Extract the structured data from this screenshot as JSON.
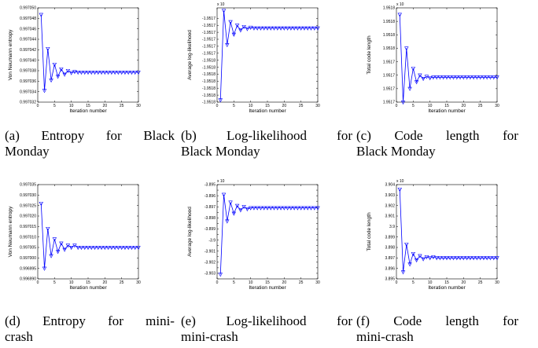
{
  "charts": [
    {
      "id": "a",
      "chart_data": {
        "type": "line",
        "xlabel": "Iteration number",
        "ylabel": "Von Neumann entropy",
        "xlim": [
          0,
          30
        ],
        "ylim": [
          0.997032,
          0.99705
        ],
        "xticks": [
          0,
          5,
          10,
          15,
          20,
          25,
          30
        ],
        "yticks": [
          0.997032,
          0.997034,
          0.997036,
          0.997038,
          0.99704,
          0.997042,
          0.997044,
          0.997046,
          0.997048,
          0.99705
        ],
        "ytick_labels": [
          "0.997032",
          "0.997034",
          "0.997036",
          "0.997038",
          "0.997040",
          "0.997042",
          "0.997044",
          "0.997046",
          "0.997048",
          "0.997050"
        ],
        "exponent_label": "",
        "x": [
          1,
          2,
          3,
          4,
          5,
          6,
          7,
          8,
          9,
          10,
          11,
          12,
          13,
          14,
          15,
          16,
          17,
          18,
          19,
          20,
          21,
          22,
          23,
          24,
          25,
          26,
          27,
          28,
          29,
          30
        ],
        "y": [
          0.9970487,
          0.9970342,
          0.9970422,
          0.9970362,
          0.9970392,
          0.9970369,
          0.9970383,
          0.9970373,
          0.997038,
          0.9970376,
          0.9970378,
          0.9970377,
          0.9970377,
          0.9970377,
          0.9970377,
          0.9970377,
          0.9970377,
          0.9970377,
          0.9970377,
          0.9970377,
          0.9970377,
          0.9970377,
          0.9970377,
          0.9970377,
          0.9970377,
          0.9970377,
          0.9970377,
          0.9970377,
          0.9970377,
          0.9970377
        ],
        "color": "#0000ff",
        "marker": "triangle-down"
      },
      "caption": {
        "line1": [
          "(a)",
          "Entropy",
          "for",
          "Black"
        ],
        "line2": "Monday"
      }
    },
    {
      "id": "b",
      "chart_data": {
        "type": "line",
        "xlabel": "Iteration number",
        "ylabel": "Average log-likelihood",
        "xlim": [
          0,
          30
        ],
        "ylim": [
          -19.5182,
          -19.51685
        ],
        "xticks": [
          0,
          5,
          10,
          15,
          20,
          25,
          30
        ],
        "yticks": [
          -19.5182,
          -19.5181,
          -19.518,
          -19.5179,
          -19.5178,
          -19.5177,
          -19.5176,
          -19.5175,
          -19.5174,
          -19.5173,
          -19.5172,
          -19.5171,
          -19.517
        ],
        "ytick_labels": [
          "-1.9518",
          "-1.9518",
          "-1.9518",
          "-1.9518",
          "-1.9518",
          "-1.9518",
          "-1.9518",
          "-1.9517",
          "-1.9517",
          "-1.9517",
          "-1.9517",
          "-1.9517",
          "-1.9517"
        ],
        "exponent_label": "x 10",
        "x": [
          1,
          2,
          3,
          4,
          5,
          6,
          7,
          8,
          9,
          10,
          11,
          12,
          13,
          14,
          15,
          16,
          17,
          18,
          19,
          20,
          21,
          22,
          23,
          24,
          25,
          26,
          27,
          28,
          29,
          30
        ],
        "y": [
          -19.51817,
          -19.51689,
          -19.51738,
          -19.51705,
          -19.51723,
          -19.5171,
          -19.51717,
          -19.51712,
          -19.51715,
          -19.51713,
          -19.51714,
          -19.51714,
          -19.51714,
          -19.51714,
          -19.51714,
          -19.51714,
          -19.51714,
          -19.51714,
          -19.51714,
          -19.51714,
          -19.51714,
          -19.51714,
          -19.51714,
          -19.51714,
          -19.51714,
          -19.51714,
          -19.51714,
          -19.51714,
          -19.51714,
          -19.51714
        ],
        "color": "#0000ff",
        "marker": "triangle-down"
      },
      "caption": {
        "line1": [
          "(b)",
          "Log-likelihood",
          "for"
        ],
        "line2": "Black Monday"
      }
    },
    {
      "id": "c",
      "chart_data": {
        "type": "line",
        "xlabel": "Iteration number",
        "ylabel": "Total code length",
        "xlim": [
          0,
          30
        ],
        "ylim": [
          1.95168,
          1.95182
        ],
        "xticks": [
          0,
          5,
          10,
          15,
          20,
          25,
          30
        ],
        "yticks": [
          1.95168,
          1.9517,
          1.95172,
          1.95174,
          1.95176,
          1.95178,
          1.9518,
          1.95182
        ],
        "ytick_labels": [
          "1.9517",
          "1.9517",
          "1.9517",
          "1.9517",
          "1.9518",
          "1.9518",
          "1.9518",
          "1.9518"
        ],
        "exponent_label": "x 10",
        "x": [
          1,
          2,
          3,
          4,
          5,
          6,
          7,
          8,
          9,
          10,
          11,
          12,
          13,
          14,
          15,
          16,
          17,
          18,
          19,
          20,
          21,
          22,
          23,
          24,
          25,
          26,
          27,
          28,
          29,
          30
        ],
        "y": [
          1.95181,
          1.95168,
          1.95176,
          1.9517,
          1.95173,
          1.95171,
          1.95172,
          1.951715,
          1.951718,
          1.951716,
          1.951717,
          1.951717,
          1.951717,
          1.951717,
          1.951717,
          1.951717,
          1.951717,
          1.951717,
          1.951717,
          1.951717,
          1.951717,
          1.951717,
          1.951717,
          1.951717,
          1.951717,
          1.951717,
          1.951717,
          1.951717,
          1.951717,
          1.951717
        ],
        "color": "#0000ff",
        "marker": "triangle-down"
      },
      "caption": {
        "line1": [
          "(c)",
          "Code",
          "length",
          "for"
        ],
        "line2": "Black Monday"
      }
    },
    {
      "id": "d",
      "chart_data": {
        "type": "line",
        "xlabel": "Iteration number",
        "ylabel": "Von Neumann entropy",
        "xlim": [
          0,
          30
        ],
        "ylim": [
          0.99699,
          0.997035
        ],
        "xticks": [
          0,
          5,
          10,
          15,
          20,
          25,
          30
        ],
        "yticks": [
          0.99699,
          0.996995,
          0.997,
          0.997005,
          0.99701,
          0.997015,
          0.99702,
          0.997025,
          0.99703,
          0.997035
        ],
        "ytick_labels": [
          "0.996990",
          "0.996995",
          "0.997000",
          "0.997005",
          "0.997010",
          "0.997015",
          "0.997020",
          "0.997025",
          "0.997030",
          "0.997035"
        ],
        "exponent_label": "",
        "x": [
          1,
          2,
          3,
          4,
          5,
          6,
          7,
          8,
          9,
          10,
          11,
          12,
          13,
          14,
          15,
          16,
          17,
          18,
          19,
          20,
          21,
          22,
          23,
          24,
          25,
          26,
          27,
          28,
          29,
          30
        ],
        "y": [
          0.997026,
          0.996995,
          0.997014,
          0.997001,
          0.997009,
          0.997003,
          0.997007,
          0.997004,
          0.997006,
          0.997005,
          0.997006,
          0.997005,
          0.997005,
          0.997005,
          0.997005,
          0.997005,
          0.997005,
          0.997005,
          0.997005,
          0.997005,
          0.997005,
          0.997005,
          0.997005,
          0.997005,
          0.997005,
          0.997005,
          0.997005,
          0.997005,
          0.997005,
          0.997005
        ],
        "color": "#0000ff",
        "marker": "triangle-down"
      },
      "caption": {
        "line1": [
          "(d)",
          "Entropy",
          "for",
          "mini-"
        ],
        "line2": "crash"
      }
    },
    {
      "id": "e",
      "chart_data": {
        "type": "line",
        "xlabel": "Iteration number",
        "ylabel": "Average log-likelihood",
        "xlim": [
          0,
          30
        ],
        "ylim": [
          -3.9035,
          -3.895
        ],
        "xticks": [
          0,
          5,
          10,
          15,
          20,
          25,
          30
        ],
        "yticks": [
          -3.9035,
          -3.903,
          -3.9025,
          -3.902,
          -3.9015,
          -3.901,
          -3.9005,
          -3.9,
          -3.8995,
          -3.899,
          -3.8985,
          -3.898,
          -3.8975,
          -3.897,
          -3.8965,
          -3.896,
          -3.8955,
          -3.895
        ],
        "ytick_labels": [
          "",
          "-3.903",
          "",
          "-3.902",
          "",
          "-3.901",
          "",
          "-3.9",
          "",
          "-3.899",
          "",
          "-3.898",
          "",
          "-3.897",
          "",
          "-3.896",
          "",
          "-3.895"
        ],
        "exponent_label": "x 10",
        "x": [
          1,
          2,
          3,
          4,
          5,
          6,
          7,
          8,
          9,
          10,
          11,
          12,
          13,
          14,
          15,
          16,
          17,
          18,
          19,
          20,
          21,
          22,
          23,
          24,
          25,
          26,
          27,
          28,
          29,
          30
        ],
        "y": [
          -3.9031,
          -3.8959,
          -3.8983,
          -3.8966,
          -3.8976,
          -3.8969,
          -3.8973,
          -3.897,
          -3.8972,
          -3.8971,
          -3.8971,
          -3.8971,
          -3.8971,
          -3.8971,
          -3.8971,
          -3.8971,
          -3.8971,
          -3.8971,
          -3.8971,
          -3.8971,
          -3.8971,
          -3.8971,
          -3.8971,
          -3.8971,
          -3.8971,
          -3.8971,
          -3.8971,
          -3.8971,
          -3.8971,
          -3.8971
        ],
        "color": "#0000ff",
        "marker": "triangle-down"
      },
      "caption": {
        "line1": [
          "(e)",
          "Log-likelihood",
          "for"
        ],
        "line2": "mini-crash"
      }
    },
    {
      "id": "f",
      "chart_data": {
        "type": "line",
        "xlabel": "Iteration number",
        "ylabel": "Total code length",
        "xlim": [
          0,
          30
        ],
        "ylim": [
          3.895,
          3.904
        ],
        "xticks": [
          0,
          5,
          10,
          15,
          20,
          25,
          30
        ],
        "yticks": [
          3.895,
          3.896,
          3.897,
          3.898,
          3.899,
          3.9,
          3.901,
          3.902,
          3.903,
          3.904
        ],
        "ytick_labels": [
          "3.895",
          "3.896",
          "3.897",
          "3.898",
          "3.899",
          "3.9",
          "3.901",
          "3.902",
          "3.903",
          "3.904"
        ],
        "exponent_label": "x 10",
        "x": [
          1,
          2,
          3,
          4,
          5,
          6,
          7,
          8,
          9,
          10,
          11,
          12,
          13,
          14,
          15,
          16,
          17,
          18,
          19,
          20,
          21,
          22,
          23,
          24,
          25,
          26,
          27,
          28,
          29,
          30
        ],
        "y": [
          3.90355,
          3.89565,
          3.8983,
          3.8964,
          3.8974,
          3.8968,
          3.8972,
          3.8969,
          3.8971,
          3.897,
          3.8971,
          3.897,
          3.897,
          3.897,
          3.897,
          3.897,
          3.897,
          3.897,
          3.897,
          3.897,
          3.897,
          3.897,
          3.897,
          3.897,
          3.897,
          3.897,
          3.897,
          3.897,
          3.897,
          3.897
        ],
        "color": "#0000ff",
        "marker": "triangle-down"
      },
      "caption": {
        "line1": [
          "(f)",
          "Code",
          "length",
          "for"
        ],
        "line2": "mini-crash"
      }
    }
  ]
}
